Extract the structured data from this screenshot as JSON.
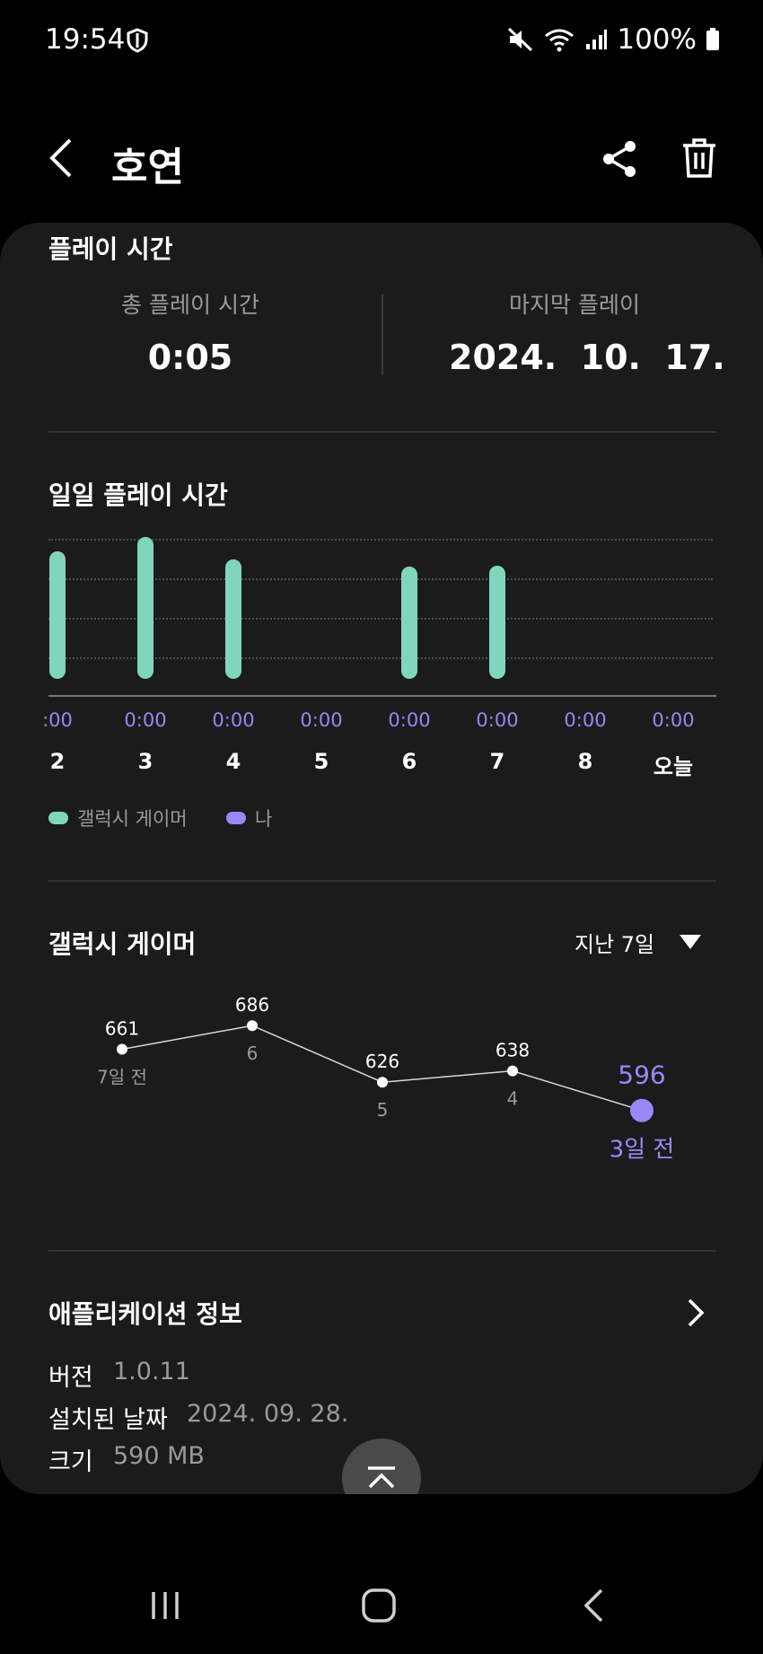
{
  "status_bar": {
    "time": "19:54",
    "battery": "100%"
  },
  "header": {
    "title": "호연"
  },
  "play_time": {
    "section_title": "플레이 시간",
    "total_label": "총 플레이 시간",
    "total_value": "0:05",
    "last_label": "마지막 플레이",
    "last_value": "2024.  10.  17."
  },
  "daily": {
    "section_title": "일일 플레이 시간",
    "my_labels": [
      ":00",
      "0:00",
      "0:00",
      "0:00",
      "0:00",
      "0:00",
      "0:00",
      "0:00"
    ],
    "days": [
      "2",
      "3",
      "4",
      "5",
      "6",
      "7",
      "8",
      "오늘"
    ],
    "legend": [
      {
        "name": "갤럭시 게이머",
        "color": "#7fd6bd"
      },
      {
        "name": "나",
        "color": "#9b87f5"
      }
    ]
  },
  "chart_data": {
    "type": "bar",
    "categories": [
      "2",
      "3",
      "4",
      "5",
      "6",
      "7",
      "8",
      "오늘"
    ],
    "series": [
      {
        "name": "갤럭시 게이머",
        "values": [
          0.9,
          1.0,
          0.84,
          0,
          0.79,
          0.8,
          0,
          0
        ]
      },
      {
        "name": "나",
        "values": [
          0,
          0,
          0,
          0,
          0,
          0,
          0,
          0
        ]
      }
    ],
    "title": "일일 플레이 시간",
    "grid": true
  },
  "gamers": {
    "section_title": "갤럭시 게이머",
    "period": "지난 7일",
    "points": [
      {
        "value": "661",
        "label": "7일 전"
      },
      {
        "value": "686",
        "label": "6"
      },
      {
        "value": "626",
        "label": "5"
      },
      {
        "value": "638",
        "label": "4"
      },
      {
        "value": "596",
        "label": "3일 전"
      }
    ],
    "chart_data": {
      "type": "line",
      "x": [
        "7일 전",
        "6",
        "5",
        "4",
        "3일 전"
      ],
      "values": [
        661,
        686,
        626,
        638,
        596
      ],
      "highlight_index": 4
    }
  },
  "app_info": {
    "section_title": "애플리케이션 정보",
    "version_label": "버전",
    "version_value": "1.0.11",
    "installed_label": "설치된 날짜",
    "installed_value": "2024. 09. 28.",
    "size_label": "크기",
    "size_value": "590 MB"
  },
  "colors": {
    "accent_green": "#7fd6bd",
    "accent_purple": "#9b87f5",
    "card": "#1b1b1c"
  }
}
